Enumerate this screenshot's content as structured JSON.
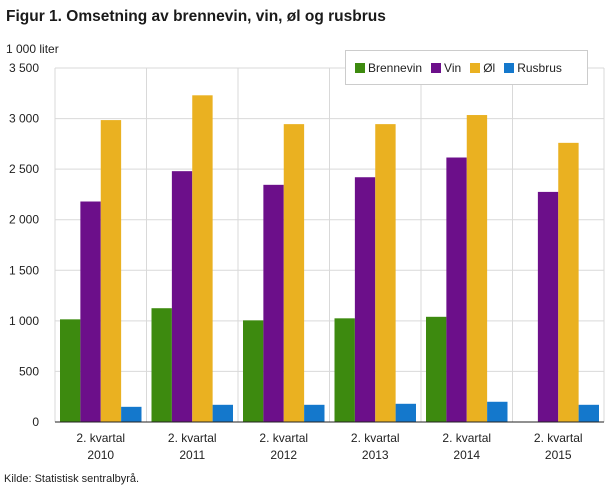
{
  "title": "Figur 1. Omsetning av brennevin, vin, øl og rusbrus",
  "unit_label": "1 000 liter",
  "source": "Kilde: Statistisk sentralbyrå.",
  "chart_data": {
    "type": "bar",
    "categories": [
      [
        "2. kvartal",
        "2010"
      ],
      [
        "2. kvartal",
        "2011"
      ],
      [
        "2. kvartal",
        "2012"
      ],
      [
        "2. kvartal",
        "2013"
      ],
      [
        "2. kvartal",
        "2014"
      ],
      [
        "2. kvartal",
        "2015"
      ]
    ],
    "series": [
      {
        "name": "Brennevin",
        "color": "#3d8a0f",
        "values": [
          1015,
          1125,
          1005,
          1025,
          1040,
          null
        ]
      },
      {
        "name": "Vin",
        "color": "#6c0f8a",
        "values": [
          2180,
          2480,
          2345,
          2420,
          2615,
          2275
        ]
      },
      {
        "name": "Øl",
        "color": "#eab121",
        "values": [
          2985,
          3230,
          2945,
          2945,
          3035,
          2760
        ]
      },
      {
        "name": "Rusbrus",
        "color": "#1478cc",
        "values": [
          150,
          170,
          170,
          180,
          200,
          170
        ]
      }
    ],
    "ylim": [
      0,
      3500
    ],
    "yticks": [
      0,
      500,
      1000,
      1500,
      2000,
      2500,
      3000,
      3500
    ],
    "ytick_labels": [
      "0",
      "500",
      "1 000",
      "1 500",
      "2 000",
      "2 500",
      "3 000",
      "3 500"
    ],
    "grid": true,
    "legend_position": "top-right"
  }
}
